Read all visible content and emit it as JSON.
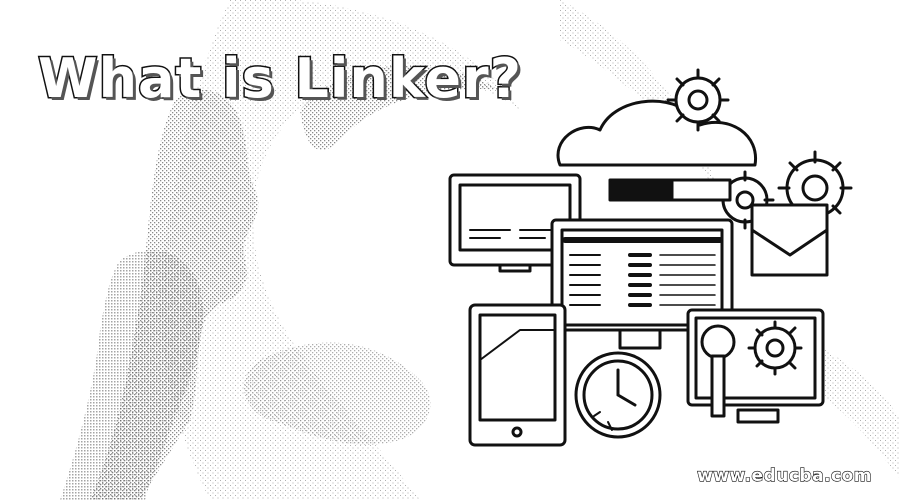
{
  "banner": {
    "title": "What is Linker?",
    "watermark": "www.educba.com"
  },
  "colors": {
    "background": "#ffffff",
    "ink": "#111111",
    "stipple": "#9a9a9a"
  }
}
